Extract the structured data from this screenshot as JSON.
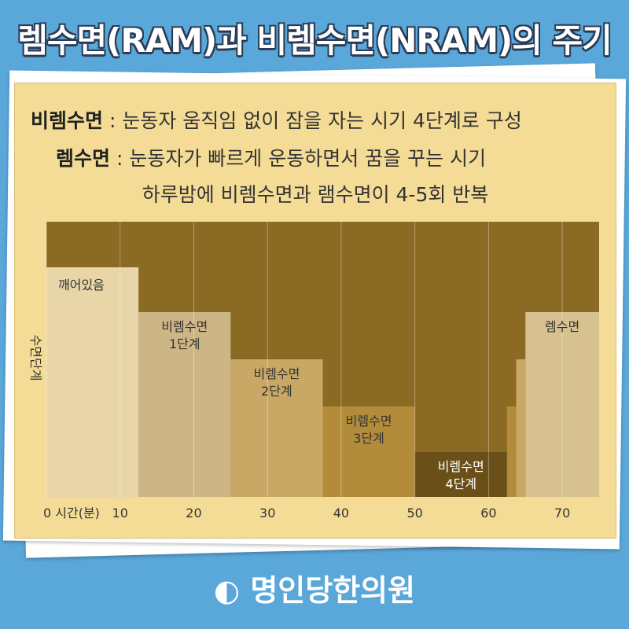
{
  "title": "렘수면(RAM)과 비렘수면(NRAM)의 주기",
  "notes": [
    {
      "term": "비렘수면",
      "text": ": 눈동자 움직임 없이 잠을 자는 시기 4단계로 구성"
    },
    {
      "term": "렘수면",
      "text": ": 눈동자가 빠르게 운동하면서 꿈을 꾸는 시기"
    }
  ],
  "summary": "하루밤에 비렘수면과 램수면이 4-5회 반복",
  "chart_data": {
    "type": "step-blocks",
    "ylabel": "수면단계",
    "xlim": [
      0,
      75
    ],
    "xticks": [
      {
        "value": 0,
        "label": "0 시간(분)"
      },
      10,
      20,
      30,
      40,
      50,
      60,
      70
    ],
    "segments": [
      {
        "start": 0,
        "end": 12.5,
        "color": "#e8d6a8",
        "label_lines": [
          "깨어있음"
        ]
      },
      {
        "start": 12.5,
        "end": 25,
        "color": "#cdb685",
        "label_lines": [
          "비렘수면",
          "1단계"
        ]
      },
      {
        "start": 25,
        "end": 37.5,
        "color": "#c9a866",
        "label_lines": [
          "비렘수면",
          "2단계"
        ]
      },
      {
        "start": 37.5,
        "end": 50,
        "color": "#b28c3a",
        "label_lines": [
          "비렘수면",
          "3단계"
        ]
      },
      {
        "start": 50,
        "end": 62.5,
        "color": "#6b4f18",
        "label_lines": [
          "비렘수면",
          "4단계"
        ]
      },
      {
        "start": 62.5,
        "end": 63.75,
        "color": "#b28c3a"
      },
      {
        "start": 63.75,
        "end": 65,
        "color": "#c9a866"
      },
      {
        "start": 65,
        "end": 75,
        "color": "#d8c190",
        "label_lines": [
          "렘수면"
        ]
      }
    ]
  },
  "footer": "명인당한의원"
}
